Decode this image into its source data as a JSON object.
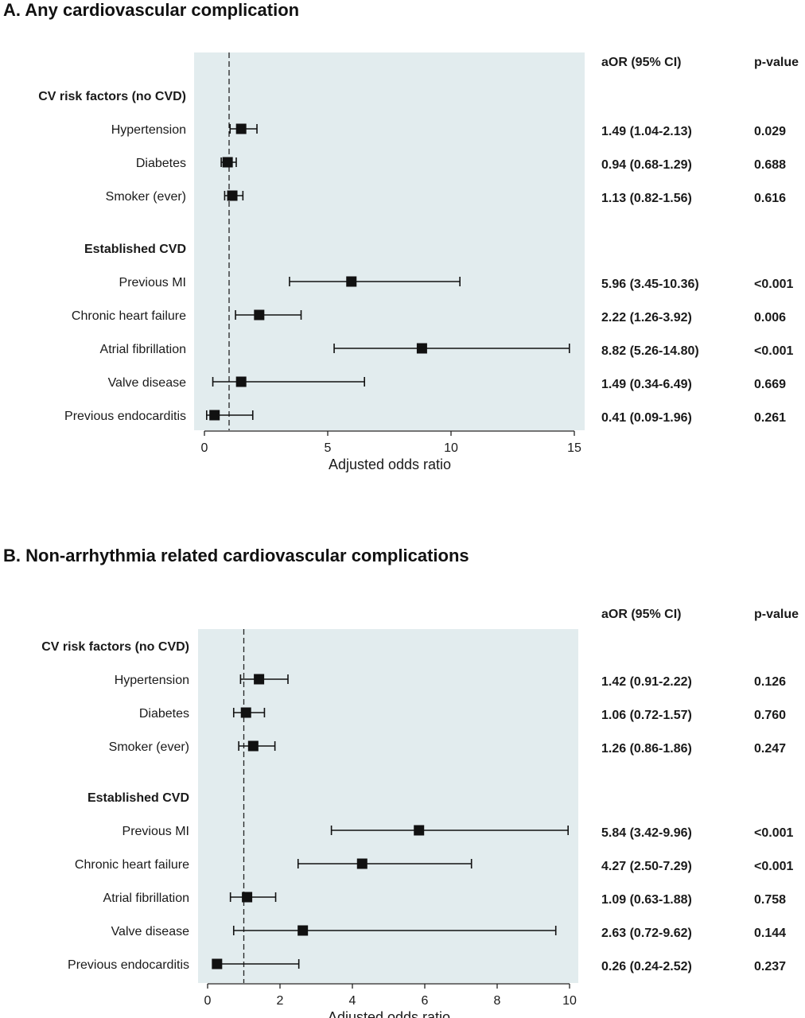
{
  "chart_data": [
    {
      "type": "forest",
      "title": "A. Any cardiovascular complication",
      "xlabel": "Adjusted odds ratio",
      "xlim": [
        0,
        15
      ],
      "xticks": [
        0,
        5,
        10,
        15
      ],
      "reference_line": 1,
      "column_headers": [
        "aOR (95% CI)",
        "p-value"
      ],
      "background_color": "#e2ecee",
      "groups": [
        {
          "label": "CV risk factors (no CVD)",
          "rows": [
            {
              "label": "Hypertension",
              "or": 1.49,
              "lo": 1.04,
              "hi": 2.13,
              "ci_text": "1.49 (1.04-2.13)",
              "p": "0.029"
            },
            {
              "label": "Diabetes",
              "or": 0.94,
              "lo": 0.68,
              "hi": 1.29,
              "ci_text": "0.94 (0.68-1.29)",
              "p": "0.688"
            },
            {
              "label": "Smoker (ever)",
              "or": 1.13,
              "lo": 0.82,
              "hi": 1.56,
              "ci_text": "1.13 (0.82-1.56)",
              "p": "0.616"
            }
          ]
        },
        {
          "label": "Established CVD",
          "rows": [
            {
              "label": "Previous MI",
              "or": 5.96,
              "lo": 3.45,
              "hi": 10.36,
              "ci_text": "5.96 (3.45-10.36)",
              "p": "<0.001"
            },
            {
              "label": "Chronic heart failure",
              "or": 2.22,
              "lo": 1.26,
              "hi": 3.92,
              "ci_text": "2.22 (1.26-3.92)",
              "p": "0.006"
            },
            {
              "label": "Atrial fibrillation",
              "or": 8.82,
              "lo": 5.26,
              "hi": 14.8,
              "ci_text": "8.82 (5.26-14.80)",
              "p": "<0.001"
            },
            {
              "label": "Valve disease",
              "or": 1.49,
              "lo": 0.34,
              "hi": 6.49,
              "ci_text": "1.49 (0.34-6.49)",
              "p": "0.669"
            },
            {
              "label": "Previous endocarditis",
              "or": 0.41,
              "lo": 0.09,
              "hi": 1.96,
              "ci_text": "0.41 (0.09-1.96)",
              "p": "0.261"
            }
          ]
        }
      ]
    },
    {
      "type": "forest",
      "title": "B. Non-arrhythmia related cardiovascular complications",
      "xlabel": "Adjusted odds ratio",
      "xlim": [
        0,
        10
      ],
      "xticks": [
        0,
        2,
        4,
        6,
        8,
        10
      ],
      "reference_line": 1,
      "column_headers": [
        "aOR (95% CI)",
        "p-value"
      ],
      "background_color": "#e2ecee",
      "groups": [
        {
          "label": "CV risk factors (no CVD)",
          "rows": [
            {
              "label": "Hypertension",
              "or": 1.42,
              "lo": 0.91,
              "hi": 2.22,
              "ci_text": "1.42 (0.91-2.22)",
              "p": "0.126"
            },
            {
              "label": "Diabetes",
              "or": 1.06,
              "lo": 0.72,
              "hi": 1.57,
              "ci_text": "1.06 (0.72-1.57)",
              "p": "0.760"
            },
            {
              "label": "Smoker (ever)",
              "or": 1.26,
              "lo": 0.86,
              "hi": 1.86,
              "ci_text": "1.26 (0.86-1.86)",
              "p": "0.247"
            }
          ]
        },
        {
          "label": "Established CVD",
          "rows": [
            {
              "label": "Previous MI",
              "or": 5.84,
              "lo": 3.42,
              "hi": 9.96,
              "ci_text": "5.84 (3.42-9.96)",
              "p": "<0.001"
            },
            {
              "label": "Chronic heart failure",
              "or": 4.27,
              "lo": 2.5,
              "hi": 7.29,
              "ci_text": "4.27 (2.50-7.29)",
              "p": "<0.001"
            },
            {
              "label": "Atrial fibrillation",
              "or": 1.09,
              "lo": 0.63,
              "hi": 1.88,
              "ci_text": "1.09 (0.63-1.88)",
              "p": "0.758"
            },
            {
              "label": "Valve disease",
              "or": 2.63,
              "lo": 0.72,
              "hi": 9.62,
              "ci_text": "2.63 (0.72-9.62)",
              "p": "0.144"
            },
            {
              "label": "Previous endocarditis",
              "or": 0.26,
              "lo": 0.24,
              "hi": 2.52,
              "ci_text": "0.26 (0.24-2.52)",
              "p": "0.237"
            }
          ]
        }
      ]
    }
  ]
}
